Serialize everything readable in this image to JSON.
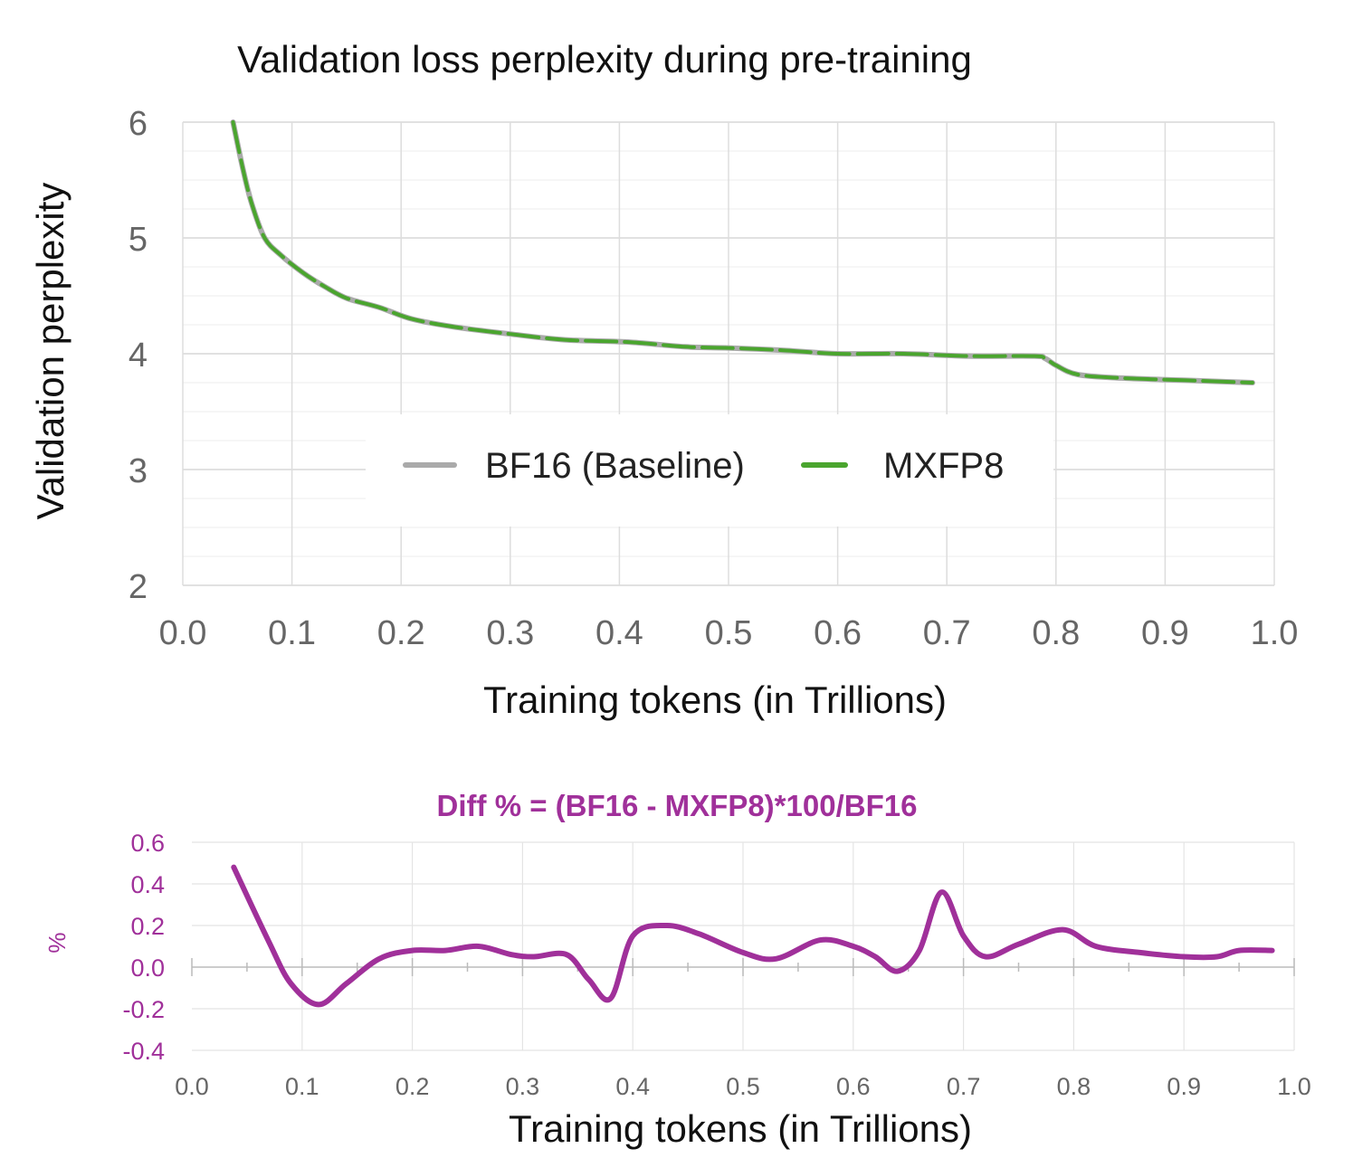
{
  "chart_data": [
    {
      "type": "line",
      "title": "Validation loss perplexity during pre-training",
      "xlabel": "Training tokens (in Trillions)",
      "ylabel": "Validation perplexity",
      "xlim": [
        0.0,
        1.0
      ],
      "ylim": [
        2,
        6
      ],
      "x_ticks": [
        "0.0",
        "0.1",
        "0.2",
        "0.3",
        "0.4",
        "0.5",
        "0.6",
        "0.7",
        "0.8",
        "0.9",
        "1.0"
      ],
      "y_ticks": [
        "2",
        "3",
        "4",
        "5",
        "6"
      ],
      "grid": true,
      "legend_position": "center",
      "series": [
        {
          "name": "BF16 (Baseline)",
          "color": "#aaaaaa",
          "x": [
            0.046,
            0.055,
            0.063,
            0.075,
            0.09,
            0.11,
            0.13,
            0.15,
            0.18,
            0.21,
            0.25,
            0.3,
            0.35,
            0.41,
            0.46,
            0.5,
            0.55,
            0.6,
            0.66,
            0.72,
            0.78,
            0.79,
            0.8,
            0.82,
            0.86,
            0.92,
            0.98
          ],
          "y": [
            6.0,
            5.6,
            5.3,
            5.0,
            4.85,
            4.7,
            4.58,
            4.48,
            4.4,
            4.3,
            4.23,
            4.17,
            4.12,
            4.1,
            4.06,
            4.05,
            4.03,
            4.0,
            4.0,
            3.98,
            3.98,
            3.96,
            3.9,
            3.82,
            3.79,
            3.77,
            3.75
          ]
        },
        {
          "name": "MXFP8",
          "color": "#4aa52e",
          "x": [
            0.046,
            0.055,
            0.063,
            0.075,
            0.09,
            0.11,
            0.13,
            0.15,
            0.18,
            0.21,
            0.25,
            0.3,
            0.35,
            0.41,
            0.46,
            0.5,
            0.55,
            0.6,
            0.66,
            0.72,
            0.78,
            0.79,
            0.8,
            0.82,
            0.86,
            0.92,
            0.98
          ],
          "y": [
            6.0,
            5.6,
            5.3,
            5.0,
            4.85,
            4.7,
            4.58,
            4.48,
            4.4,
            4.3,
            4.23,
            4.17,
            4.12,
            4.1,
            4.06,
            4.05,
            4.03,
            4.0,
            4.0,
            3.98,
            3.98,
            3.96,
            3.9,
            3.82,
            3.79,
            3.77,
            3.75
          ]
        }
      ]
    },
    {
      "type": "line",
      "title": "Diff % = (BF16 - MXFP8)*100/BF16",
      "xlabel": "Training tokens (in Trillions)",
      "ylabel": "%",
      "xlim": [
        0.0,
        1.0
      ],
      "ylim": [
        -0.4,
        0.6
      ],
      "x_ticks": [
        "0.0",
        "0.1",
        "0.2",
        "0.3",
        "0.4",
        "0.5",
        "0.6",
        "0.7",
        "0.8",
        "0.9",
        "1.0"
      ],
      "y_ticks": [
        "0.6",
        "0.4",
        "0.2",
        "0.0",
        "-0.2",
        "-0.4"
      ],
      "grid": true,
      "series": [
        {
          "name": "Diff %",
          "color": "#a0309a",
          "x": [
            0.038,
            0.07,
            0.09,
            0.115,
            0.14,
            0.17,
            0.2,
            0.23,
            0.26,
            0.29,
            0.31,
            0.34,
            0.36,
            0.38,
            0.4,
            0.43,
            0.46,
            0.5,
            0.53,
            0.57,
            0.6,
            0.62,
            0.64,
            0.66,
            0.68,
            0.7,
            0.72,
            0.75,
            0.79,
            0.82,
            0.86,
            0.9,
            0.93,
            0.95,
            0.98
          ],
          "y": [
            0.48,
            0.12,
            -0.08,
            -0.18,
            -0.08,
            0.04,
            0.08,
            0.08,
            0.1,
            0.06,
            0.05,
            0.06,
            -0.06,
            -0.15,
            0.15,
            0.2,
            0.16,
            0.07,
            0.04,
            0.13,
            0.1,
            0.05,
            -0.02,
            0.08,
            0.36,
            0.15,
            0.05,
            0.11,
            0.18,
            0.1,
            0.07,
            0.05,
            0.05,
            0.08,
            0.08
          ]
        }
      ]
    }
  ]
}
